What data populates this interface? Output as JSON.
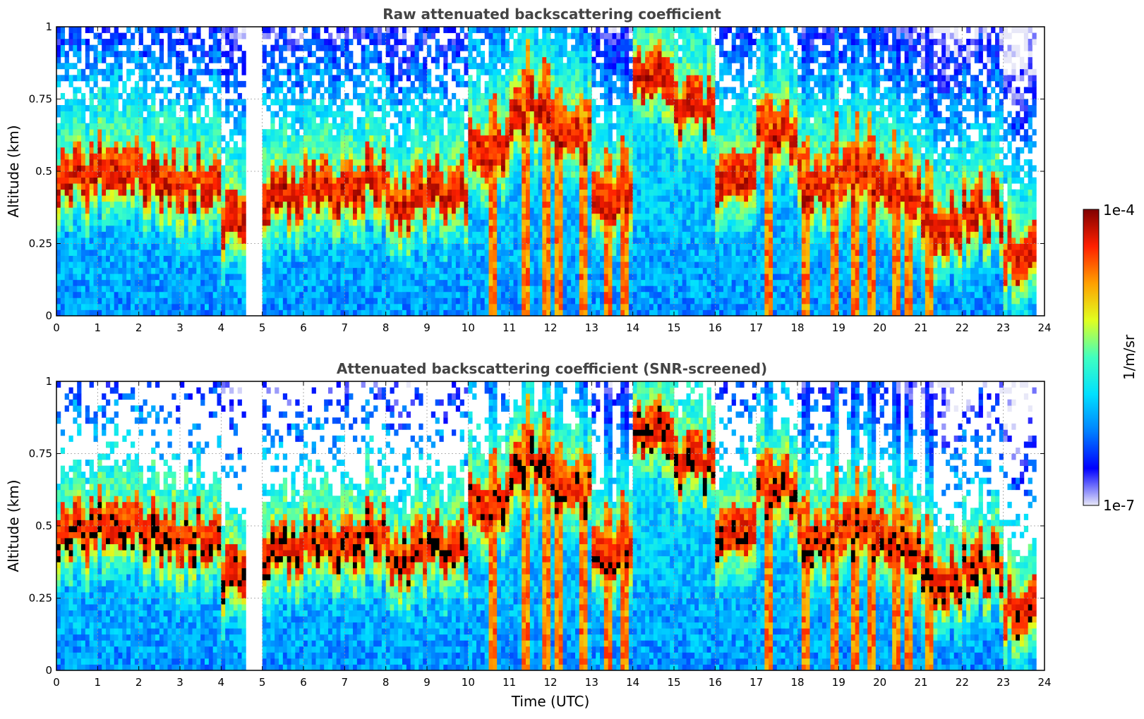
{
  "chart_data": [
    {
      "type": "heatmap",
      "id": "raw",
      "title": "Raw attenuated backscattering coefficient",
      "ylabel": "Altitude (km)",
      "xlabel": "",
      "xlim": [
        0,
        24
      ],
      "ylim": [
        0,
        1
      ],
      "xticks": [
        "0",
        "1",
        "2",
        "3",
        "4",
        "5",
        "6",
        "7",
        "8",
        "9",
        "10",
        "11",
        "12",
        "13",
        "14",
        "15",
        "16",
        "17",
        "18",
        "19",
        "20",
        "21",
        "22",
        "23",
        "24"
      ],
      "yticks": [
        "0",
        "0.25",
        "0.5",
        "0.75",
        "1"
      ],
      "grid": true,
      "data_gap_utc": [
        4.62,
        5.05
      ],
      "data_end_utc": 23.8,
      "screened": false,
      "cloud_base_km_hourly": [
        0.45,
        0.5,
        0.45,
        0.45,
        0.3,
        0.4,
        0.42,
        0.45,
        0.38,
        0.4,
        0.55,
        0.7,
        0.6,
        0.4,
        0.8,
        0.7,
        0.45,
        0.6,
        0.45,
        0.45,
        0.42,
        0.3,
        0.35,
        0.2
      ],
      "strong_columns_utc": [
        10.6,
        11.4,
        11.9,
        12.2,
        12.8,
        13.4,
        13.8,
        17.3,
        18.2,
        18.9,
        19.4,
        19.8,
        20.4,
        20.7,
        21.2
      ]
    },
    {
      "type": "heatmap",
      "id": "screened",
      "title": "Attenuated backscattering coefficient (SNR-screened)",
      "ylabel": "Altitude (km)",
      "xlabel": "Time (UTC)",
      "xlim": [
        0,
        24
      ],
      "ylim": [
        0,
        1
      ],
      "xticks": [
        "0",
        "1",
        "2",
        "3",
        "4",
        "5",
        "6",
        "7",
        "8",
        "9",
        "10",
        "11",
        "12",
        "13",
        "14",
        "15",
        "16",
        "17",
        "18",
        "19",
        "20",
        "21",
        "22",
        "23",
        "24"
      ],
      "yticks": [
        "0",
        "0.25",
        "0.5",
        "0.75",
        "1"
      ],
      "grid": true,
      "data_gap_utc": [
        4.62,
        5.05
      ],
      "data_end_utc": 23.8,
      "screened": true,
      "cloud_base_km_hourly": [
        0.45,
        0.5,
        0.45,
        0.45,
        0.3,
        0.4,
        0.42,
        0.45,
        0.38,
        0.4,
        0.55,
        0.7,
        0.6,
        0.4,
        0.8,
        0.7,
        0.45,
        0.6,
        0.45,
        0.45,
        0.42,
        0.3,
        0.35,
        0.2
      ],
      "strong_columns_utc": [
        10.6,
        11.4,
        11.9,
        12.2,
        12.8,
        13.4,
        13.8,
        17.3,
        18.2,
        18.9,
        19.4,
        19.8,
        20.4,
        20.7,
        21.2
      ]
    }
  ],
  "colorbar": {
    "label": "1/m/sr",
    "max_label": "1e-4",
    "min_label": "1e-7",
    "colormap": [
      "#e8e8f8",
      "#0000ff",
      "#0080ff",
      "#00e0ff",
      "#40ffc0",
      "#e0ff20",
      "#ffa000",
      "#ff2000",
      "#800000"
    ]
  }
}
